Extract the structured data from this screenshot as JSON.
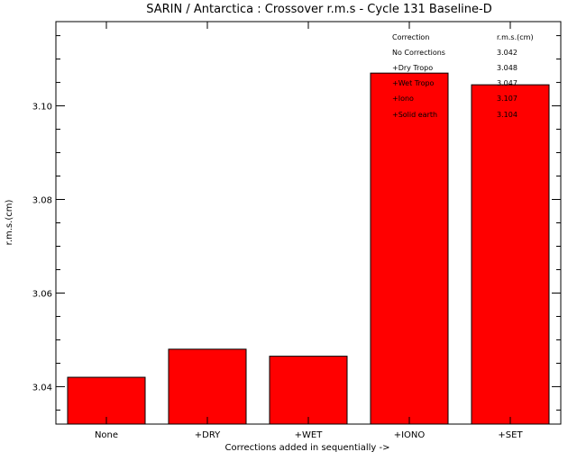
{
  "chart_data": {
    "type": "bar",
    "title": "SARIN / Antarctica : Crossover r.m.s - Cycle 131 Baseline-D",
    "xlabel": "Corrections added in sequentially ->",
    "ylabel": "r.m.s.(cm)",
    "categories": [
      "None",
      "+DRY",
      "+WET",
      "+IONO",
      "+SET"
    ],
    "values": [
      3.042,
      3.048,
      3.0465,
      3.107,
      3.1045
    ],
    "ylim": [
      3.032,
      3.118
    ],
    "yticks": [
      "3.04",
      "3.06",
      "3.08",
      "3.10"
    ],
    "bar_color": "#ff0000",
    "grid": false,
    "table": {
      "header": [
        "Correction",
        "r.m.s.(cm)"
      ],
      "rows": [
        [
          "No Corrections",
          "3.042"
        ],
        [
          "+Dry Tropo",
          "3.048"
        ],
        [
          "+Wet Tropo",
          "3.047"
        ],
        [
          "+Iono",
          "3.107"
        ],
        [
          "+Solid earth",
          "3.104"
        ]
      ]
    }
  }
}
